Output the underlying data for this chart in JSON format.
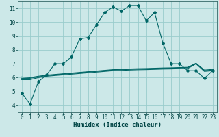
{
  "xlabel": "Humidex (Indice chaleur)",
  "background_color": "#cce8e8",
  "grid_color": "#99cccc",
  "line_color": "#006666",
  "xlim": [
    -0.5,
    23.5
  ],
  "ylim": [
    3.5,
    11.5
  ],
  "xticks": [
    0,
    1,
    2,
    3,
    4,
    5,
    6,
    7,
    8,
    9,
    10,
    11,
    12,
    13,
    14,
    15,
    16,
    17,
    18,
    19,
    20,
    21,
    22,
    23
  ],
  "yticks": [
    4,
    5,
    6,
    7,
    8,
    9,
    10,
    11
  ],
  "line1_y": [
    4.9,
    4.1,
    5.7,
    6.2,
    7.0,
    7.0,
    7.5,
    8.8,
    8.9,
    9.8,
    10.7,
    11.1,
    10.8,
    11.2,
    11.2,
    10.1,
    10.7,
    8.5,
    7.0,
    7.0,
    6.5,
    6.5,
    5.95,
    6.5
  ],
  "line2_y": [
    5.85,
    5.85,
    6.0,
    6.1,
    6.15,
    6.2,
    6.25,
    6.3,
    6.35,
    6.4,
    6.45,
    6.5,
    6.52,
    6.55,
    6.57,
    6.58,
    6.6,
    6.62,
    6.63,
    6.65,
    6.66,
    7.0,
    6.45,
    6.5
  ],
  "line3_y": [
    5.95,
    5.95,
    6.05,
    6.15,
    6.2,
    6.25,
    6.3,
    6.35,
    6.4,
    6.45,
    6.5,
    6.55,
    6.57,
    6.6,
    6.62,
    6.63,
    6.65,
    6.67,
    6.68,
    6.7,
    6.72,
    7.02,
    6.5,
    6.55
  ],
  "line4_y": [
    6.05,
    6.0,
    6.1,
    6.18,
    6.23,
    6.28,
    6.33,
    6.38,
    6.43,
    6.48,
    6.53,
    6.58,
    6.6,
    6.63,
    6.65,
    6.66,
    6.68,
    6.7,
    6.71,
    6.73,
    6.75,
    7.04,
    6.55,
    6.6
  ],
  "marker_size": 2.0,
  "line_width": 0.8,
  "tick_fontsize": 5.5,
  "xlabel_fontsize": 6.5
}
